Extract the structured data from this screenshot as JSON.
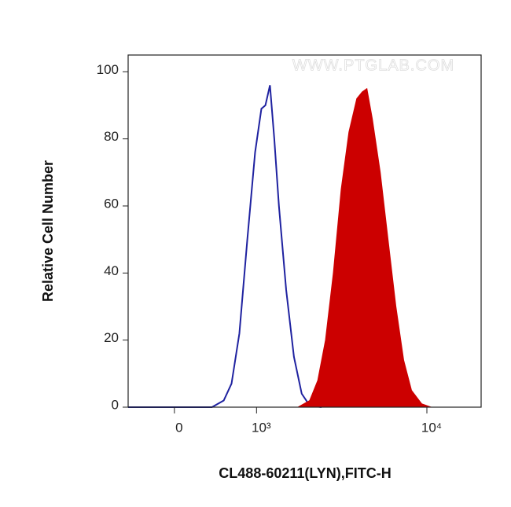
{
  "chart_data": {
    "type": "histogram",
    "watermark": "WWW.PTGLAB.COM",
    "x_label": "CL488-60211(LYN),FITC-H",
    "y_label": "Relative Cell Number",
    "xscale": "logicle",
    "xlim": [
      -500,
      20000
    ],
    "xticks": [
      0,
      {
        "value": 1000,
        "label": "10³"
      },
      {
        "value": 10000,
        "label": "10⁴"
      }
    ],
    "ylim": [
      0,
      105
    ],
    "yticks": [
      0,
      20,
      40,
      60,
      80,
      100
    ],
    "series": [
      {
        "style": "line",
        "color": "#1f22a0",
        "x": [
          -500,
          398,
          537,
          636,
          742,
          856,
          977,
          1082,
          1152,
          1235,
          1318,
          1412,
          1568,
          1750,
          1950,
          2175,
          2550
        ],
        "values": [
          0,
          0,
          2,
          7,
          22,
          50,
          76,
          89,
          90,
          96,
          80,
          60,
          35,
          15,
          4,
          0.5,
          0
        ]
      },
      {
        "style": "area",
        "color": "#cc0000",
        "x": [
          1850,
          2175,
          2425,
          2690,
          2985,
          3310,
          3660,
          4055,
          4355,
          4625,
          4960,
          5495,
          6080,
          6720,
          7430,
          8215,
          9360,
          10560
        ],
        "values": [
          0,
          2,
          8,
          20,
          40,
          65,
          82,
          92,
          94,
          95,
          86,
          70,
          50,
          30,
          14,
          5,
          1,
          0
        ]
      }
    ]
  }
}
